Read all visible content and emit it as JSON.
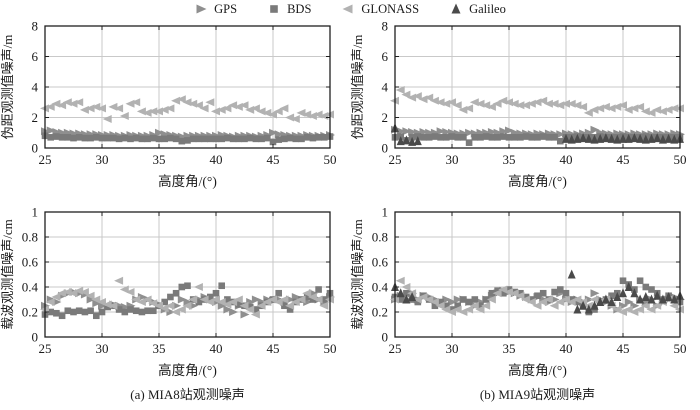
{
  "legend": {
    "items": [
      {
        "label": "GPS",
        "marker": "triangle-right",
        "color": "#8f8f8f"
      },
      {
        "label": "BDS",
        "marker": "square",
        "color": "#7a7a7a"
      },
      {
        "label": "GLONASS",
        "marker": "triangle-left",
        "color": "#b2b2b2"
      },
      {
        "label": "Galileo",
        "marker": "triangle-up",
        "color": "#4a4a4a"
      }
    ]
  },
  "captions": {
    "a": "(a) MIA8站观测噪声",
    "b": "(b) MIA9站观测噪声"
  },
  "colors": {
    "axis": "#1f1f1f",
    "grid": "#c9c9c9",
    "text": "#1a1a1a"
  },
  "chart_data": [
    {
      "id": "mia8-pseudorange",
      "type": "scatter",
      "title": "",
      "xlabel": "高度角/(°)",
      "ylabel": "伪距观测值噪声/m",
      "xlim": [
        25,
        50
      ],
      "ylim": [
        0,
        8
      ],
      "xticks": [
        "25",
        "30",
        "35",
        "40",
        "45",
        "50"
      ],
      "yticks": [
        "0",
        "2",
        "4",
        "6",
        "8"
      ],
      "grid": true,
      "legend_position": "top-outside",
      "x_start": 25,
      "x_step": 0.5,
      "series": [
        {
          "name": "GPS",
          "values": [
            1.1,
            1.15,
            1.05,
            1.0,
            1.0,
            0.95,
            0.95,
            0.9,
            0.9,
            0.9,
            0.85,
            0.85,
            0.85,
            0.8,
            0.8,
            0.85,
            0.8,
            0.8,
            0.8,
            0.85,
            1.0,
            0.9,
            0.85,
            0.8,
            0.75,
            0.8,
            0.8,
            0.8,
            0.8,
            0.8,
            0.8,
            0.85,
            0.8,
            0.75,
            0.8,
            0.8,
            0.8,
            0.75,
            0.8,
            0.85,
            1.0,
            0.9,
            0.85,
            0.8,
            0.8,
            0.8,
            0.85,
            0.8,
            0.8,
            0.8,
            0.85
          ]
        },
        {
          "name": "BDS",
          "values": [
            0.8,
            0.7,
            0.75,
            0.7,
            0.7,
            0.65,
            0.7,
            0.65,
            0.65,
            0.7,
            0.65,
            0.65,
            0.65,
            0.6,
            0.65,
            0.6,
            0.65,
            0.6,
            0.6,
            0.65,
            0.6,
            0.6,
            0.65,
            0.6,
            0.45,
            0.5,
            0.6,
            0.6,
            0.6,
            0.6,
            0.6,
            0.6,
            0.65,
            0.6,
            0.6,
            0.6,
            0.65,
            0.6,
            0.6,
            0.65,
            0.4,
            0.55,
            0.6,
            0.65,
            0.6,
            0.6,
            0.7,
            0.65,
            0.7,
            0.7,
            0.75
          ]
        },
        {
          "name": "GLONASS",
          "values": [
            2.6,
            2.7,
            2.9,
            2.8,
            3.0,
            2.9,
            3.0,
            2.5,
            2.6,
            2.7,
            2.6,
            1.9,
            2.7,
            2.6,
            2.1,
            2.9,
            3.0,
            2.4,
            2.3,
            2.4,
            2.4,
            2.5,
            2.6,
            3.1,
            3.2,
            3.0,
            2.9,
            2.8,
            2.6,
            3.0,
            2.4,
            2.5,
            2.6,
            2.8,
            2.7,
            2.8,
            2.5,
            2.6,
            2.4,
            2.3,
            2.2,
            2.4,
            2.6,
            2.0,
            1.9,
            2.3,
            2.2,
            2.1,
            2.2,
            2.1,
            2.2
          ]
        }
      ]
    },
    {
      "id": "mia9-pseudorange",
      "type": "scatter",
      "title": "",
      "xlabel": "高度角/(°)",
      "ylabel": "伪距观测值噪声/m",
      "xlim": [
        25,
        50
      ],
      "ylim": [
        0,
        8
      ],
      "xticks": [
        "25",
        "30",
        "35",
        "40",
        "45",
        "50"
      ],
      "yticks": [
        "0",
        "2",
        "4",
        "6",
        "8"
      ],
      "grid": true,
      "legend_position": "top-outside",
      "x_start": 25,
      "x_step": 0.5,
      "series": [
        {
          "name": "GPS",
          "values": [
            1.2,
            1.1,
            1.1,
            1.05,
            1.0,
            1.05,
            1.0,
            1.0,
            1.1,
            1.05,
            1.0,
            0.95,
            0.95,
            1.0,
            0.95,
            1.0,
            1.0,
            1.05,
            1.0,
            1.1,
            1.15,
            1.0,
            0.95,
            0.95,
            0.9,
            0.95,
            0.9,
            0.95,
            0.9,
            0.9,
            0.95,
            0.9,
            0.9,
            0.95,
            1.0,
            1.2,
            1.0,
            0.95,
            0.9,
            0.95,
            0.9,
            0.9,
            0.95,
            0.9,
            0.9,
            0.9,
            0.95,
            0.9,
            0.9,
            0.95,
            0.9
          ]
        },
        {
          "name": "BDS",
          "values": [
            0.7,
            0.75,
            0.5,
            0.7,
            0.75,
            0.7,
            0.7,
            0.75,
            0.7,
            0.7,
            0.75,
            0.7,
            0.7,
            0.35,
            0.7,
            0.7,
            0.75,
            0.7,
            0.7,
            0.75,
            0.7,
            0.7,
            0.7,
            0.75,
            0.7,
            0.7,
            0.75,
            0.7,
            0.7,
            0.45,
            0.7,
            0.7,
            0.75,
            0.7,
            0.7,
            0.7,
            0.75,
            0.7,
            0.7,
            0.7,
            0.75,
            0.7,
            0.7,
            0.7,
            0.75,
            0.7,
            0.7,
            0.7,
            0.7,
            0.7,
            0.7
          ]
        },
        {
          "name": "GLONASS",
          "values": [
            3.1,
            3.8,
            3.5,
            3.3,
            3.4,
            3.2,
            3.3,
            3.1,
            3.0,
            2.9,
            3.0,
            2.8,
            2.5,
            2.6,
            3.0,
            2.9,
            2.8,
            2.7,
            2.9,
            3.1,
            3.0,
            2.9,
            2.8,
            2.8,
            2.9,
            3.0,
            3.1,
            2.9,
            2.9,
            2.8,
            2.9,
            2.9,
            2.8,
            2.7,
            2.3,
            2.5,
            2.6,
            2.7,
            2.6,
            2.7,
            2.8,
            2.5,
            2.6,
            2.7,
            2.4,
            2.3,
            2.5,
            2.4,
            2.5,
            2.6,
            2.6
          ]
        },
        {
          "name": "Galileo",
          "values": [
            1.3,
            0.45,
            0.5,
            0.4,
            0.45,
            null,
            null,
            null,
            null,
            null,
            null,
            null,
            null,
            null,
            null,
            null,
            null,
            null,
            null,
            null,
            null,
            null,
            null,
            null,
            null,
            null,
            null,
            null,
            null,
            null,
            0.6,
            0.55,
            0.6,
            0.65,
            0.6,
            0.55,
            0.6,
            0.65,
            0.6,
            0.55,
            0.6,
            0.6,
            0.65,
            0.6,
            0.55,
            0.6,
            0.65,
            0.55,
            0.6,
            0.55,
            0.6
          ]
        }
      ]
    },
    {
      "id": "mia8-carrier",
      "type": "scatter",
      "title": "",
      "xlabel": "高度角/(°)",
      "ylabel": "载波观测值噪声/cm",
      "xlim": [
        25,
        50
      ],
      "ylim": [
        0,
        1
      ],
      "xticks": [
        "25",
        "30",
        "35",
        "40",
        "45",
        "50"
      ],
      "yticks": [
        "0",
        "0.2",
        "0.4",
        "0.6",
        "0.8",
        "1"
      ],
      "grid": true,
      "legend_position": "top-outside",
      "x_start": 25,
      "x_step": 0.5,
      "series": [
        {
          "name": "GPS",
          "values": [
            0.25,
            0.3,
            0.28,
            0.33,
            0.35,
            0.36,
            0.35,
            0.34,
            0.3,
            0.27,
            0.25,
            0.24,
            0.26,
            0.25,
            0.24,
            0.25,
            0.3,
            0.32,
            0.3,
            0.28,
            0.26,
            0.22,
            0.2,
            0.25,
            0.3,
            0.28,
            0.25,
            0.3,
            0.32,
            0.3,
            0.28,
            0.25,
            0.22,
            0.2,
            0.25,
            0.18,
            0.28,
            0.3,
            0.28,
            0.3,
            0.29,
            0.3,
            0.28,
            0.3,
            0.32,
            0.3,
            0.28,
            0.35,
            0.3,
            0.28,
            0.32
          ]
        },
        {
          "name": "BDS",
          "values": [
            0.18,
            0.2,
            0.19,
            0.17,
            0.21,
            0.2,
            0.21,
            0.2,
            0.21,
            0.17,
            0.2,
            0.24,
            0.25,
            0.22,
            0.2,
            0.22,
            0.21,
            0.2,
            0.21,
            0.21,
            0.25,
            0.28,
            0.32,
            0.35,
            0.4,
            0.41,
            0.3,
            0.28,
            0.3,
            0.32,
            0.35,
            0.41,
            0.3,
            0.28,
            0.26,
            0.25,
            0.24,
            0.22,
            0.25,
            0.28,
            0.3,
            0.35,
            0.25,
            0.22,
            0.28,
            0.3,
            0.32,
            0.3,
            0.38,
            0.3,
            0.35
          ]
        },
        {
          "name": "GLONASS",
          "values": [
            0.22,
            0.28,
            0.32,
            0.35,
            0.36,
            0.35,
            0.37,
            0.36,
            0.33,
            0.3,
            0.28,
            0.26,
            0.25,
            0.45,
            0.38,
            0.36,
            0.3,
            0.28,
            0.3,
            0.27,
            0.25,
            0.23,
            0.25,
            0.2,
            0.22,
            0.25,
            0.3,
            0.4,
            0.3,
            0.28,
            0.3,
            0.28,
            0.26,
            0.28,
            0.3,
            0.25,
            0.22,
            0.18,
            0.25,
            0.28,
            0.3,
            0.28,
            0.3,
            0.25,
            0.28,
            0.3,
            0.35,
            0.32,
            0.3,
            0.25,
            0.3
          ]
        }
      ]
    },
    {
      "id": "mia9-carrier",
      "type": "scatter",
      "title": "",
      "xlabel": "高度角/(°)",
      "ylabel": "载波观测值噪声/cm",
      "xlim": [
        25,
        50
      ],
      "ylim": [
        0,
        1
      ],
      "xticks": [
        "25",
        "30",
        "35",
        "40",
        "45",
        "50"
      ],
      "yticks": [
        "0",
        "0.2",
        "0.4",
        "0.6",
        "0.8",
        "1"
      ],
      "grid": true,
      "legend_position": "top-outside",
      "x_start": 25,
      "x_step": 0.5,
      "series": [
        {
          "name": "GPS",
          "values": [
            0.3,
            0.33,
            0.3,
            0.35,
            0.3,
            0.33,
            0.32,
            0.3,
            0.28,
            0.3,
            0.28,
            0.3,
            0.3,
            0.28,
            0.25,
            0.28,
            0.3,
            0.33,
            0.35,
            0.37,
            0.36,
            0.35,
            0.33,
            0.32,
            0.3,
            0.32,
            0.3,
            0.28,
            0.3,
            0.35,
            0.3,
            0.28,
            0.3,
            0.28,
            0.3,
            0.35,
            0.3,
            0.28,
            0.25,
            0.22,
            0.25,
            0.28,
            0.25,
            0.3,
            0.28,
            0.3,
            0.25,
            0.28,
            0.3,
            0.32,
            0.3
          ]
        },
        {
          "name": "BDS",
          "values": [
            0.32,
            0.3,
            0.35,
            0.3,
            0.28,
            0.33,
            0.3,
            0.25,
            0.28,
            0.25,
            0.22,
            0.25,
            0.3,
            0.28,
            0.3,
            0.25,
            0.3,
            0.35,
            0.37,
            0.35,
            0.38,
            0.36,
            0.35,
            0.32,
            0.3,
            0.33,
            0.35,
            0.3,
            0.36,
            0.38,
            0.35,
            0.3,
            0.28,
            0.25,
            0.2,
            0.22,
            0.28,
            0.3,
            0.33,
            0.35,
            0.45,
            0.42,
            0.38,
            0.45,
            0.4,
            0.38,
            0.35,
            0.3,
            0.33,
            0.3,
            0.28
          ]
        },
        {
          "name": "GLONASS",
          "values": [
            0.3,
            0.45,
            0.4,
            0.35,
            0.3,
            0.32,
            0.3,
            0.28,
            0.25,
            0.22,
            0.2,
            0.22,
            0.2,
            0.22,
            0.25,
            0.22,
            0.25,
            0.3,
            0.35,
            0.38,
            0.36,
            0.35,
            0.33,
            0.3,
            0.28,
            0.25,
            0.28,
            0.3,
            0.25,
            0.28,
            0.3,
            0.28,
            0.3,
            0.28,
            0.25,
            0.3,
            0.28,
            0.3,
            0.25,
            0.22,
            0.2,
            0.22,
            0.2,
            0.22,
            0.25,
            0.22,
            0.25,
            0.28,
            0.3,
            0.25,
            0.22
          ]
        },
        {
          "name": "Galileo",
          "values": [
            0.4,
            0.35,
            0.3,
            0.32,
            null,
            null,
            null,
            null,
            null,
            null,
            null,
            null,
            null,
            null,
            null,
            null,
            null,
            null,
            null,
            null,
            null,
            null,
            null,
            null,
            null,
            null,
            null,
            null,
            null,
            null,
            null,
            0.5,
            0.22,
            0.25,
            0.22,
            0.25,
            0.28,
            0.3,
            0.28,
            0.32,
            0.35,
            0.4,
            0.35,
            0.3,
            0.32,
            0.3,
            0.33,
            0.3,
            0.32,
            0.3,
            0.33
          ]
        }
      ]
    }
  ]
}
